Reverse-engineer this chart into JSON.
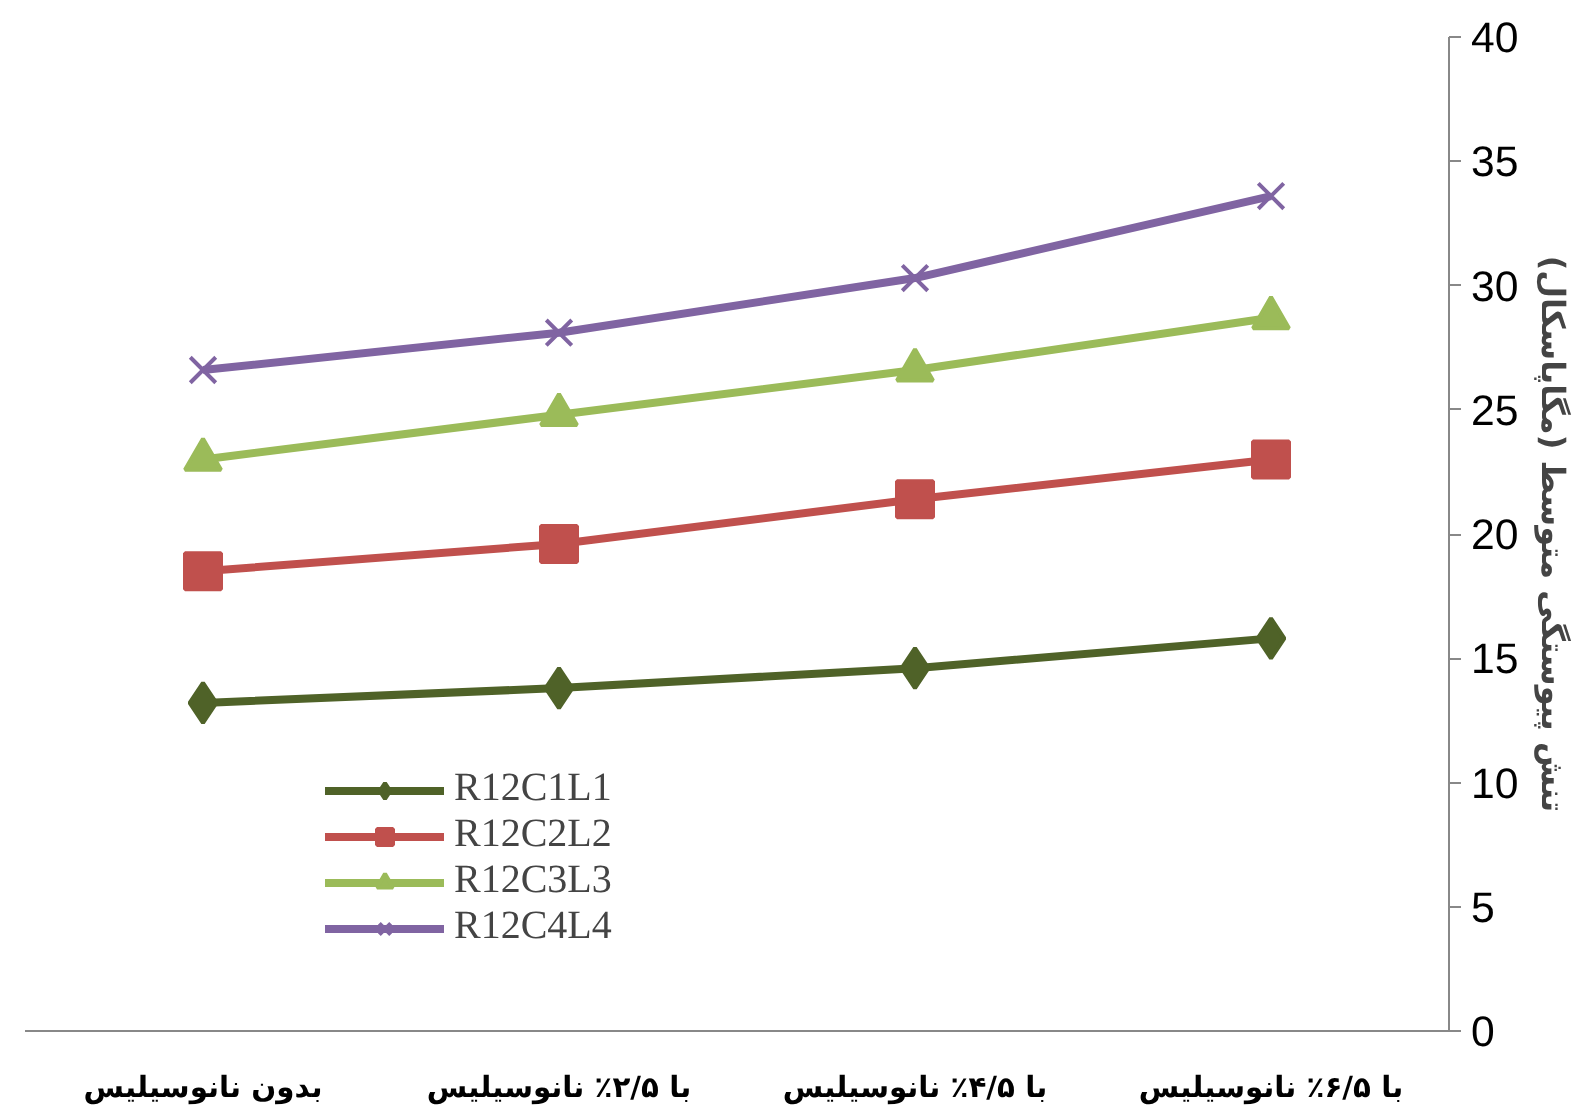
{
  "chart_data": {
    "type": "line",
    "categories": [
      "بدون نانوسیلیس",
      "با ۲/۵٪ نانوسیلیس",
      "با ۴/۵٪ نانوسیلیس",
      "با ۶/۵٪ نانوسیلیس"
    ],
    "ylabel": "تنش پیوستگی متوسط (مگاپاسکال)",
    "ylim": [
      0,
      40
    ],
    "yticks": [
      0,
      5,
      10,
      15,
      20,
      25,
      30,
      35,
      40
    ],
    "grid": false,
    "legend": "bottom left",
    "series": [
      {
        "name": "R12C1L1",
        "color": "#4f6228",
        "marker": "diamond",
        "values": [
          13.2,
          13.8,
          14.6,
          15.8
        ]
      },
      {
        "name": "R12C2L2",
        "color": "#c0504d",
        "marker": "square",
        "values": [
          18.5,
          19.6,
          21.4,
          23.0
        ]
      },
      {
        "name": "R12C3L3",
        "color": "#9bbb59",
        "marker": "triangle",
        "values": [
          23.0,
          24.8,
          26.6,
          28.7
        ]
      },
      {
        "name": "R12C4L4",
        "color": "#8064a2",
        "marker": "cross",
        "values": [
          26.6,
          28.1,
          30.3,
          33.6
        ]
      }
    ]
  }
}
